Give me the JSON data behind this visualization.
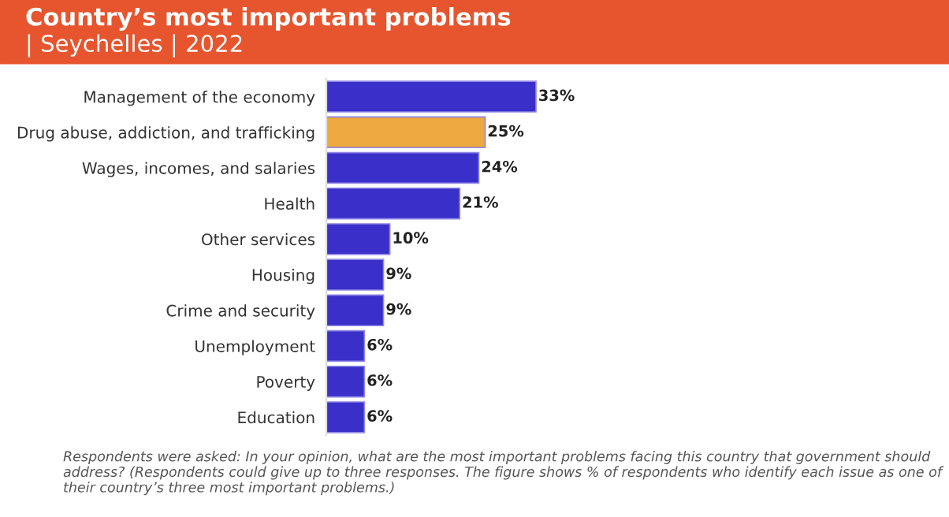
{
  "chart_data": {
    "type": "bar",
    "orientation": "horizontal",
    "title": "Country’s most important problems",
    "subtitle": "| Seychelles | 2022",
    "categories": [
      "Management of the economy",
      "Drug abuse, addiction, and trafficking",
      "Wages, incomes, and salaries",
      "Health",
      "Other services",
      "Housing",
      "Crime and security",
      "Unemployment",
      "Poverty",
      "Education"
    ],
    "values": [
      33,
      25,
      24,
      21,
      10,
      9,
      9,
      6,
      6,
      6
    ],
    "colors": [
      "#3a2fc8",
      "#eba93f",
      "#3a2fc8",
      "#3a2fc8",
      "#3a2fc8",
      "#3a2fc8",
      "#3a2fc8",
      "#3a2fc8",
      "#3a2fc8",
      "#3a2fc8"
    ],
    "value_labels": [
      "33%",
      "25%",
      "24%",
      "21%",
      "10%",
      "9%",
      "9%",
      "6%",
      "6%",
      "6%"
    ],
    "grid": false,
    "legend": false,
    "annotations": [
      "Respondents were asked: In your opinion, what are the most important problems facing this country that government should address? (Respondents could give up to three responses. The figure shows % of respondents who identify each issue as one of their country’s three most important problems.)"
    ]
  }
}
